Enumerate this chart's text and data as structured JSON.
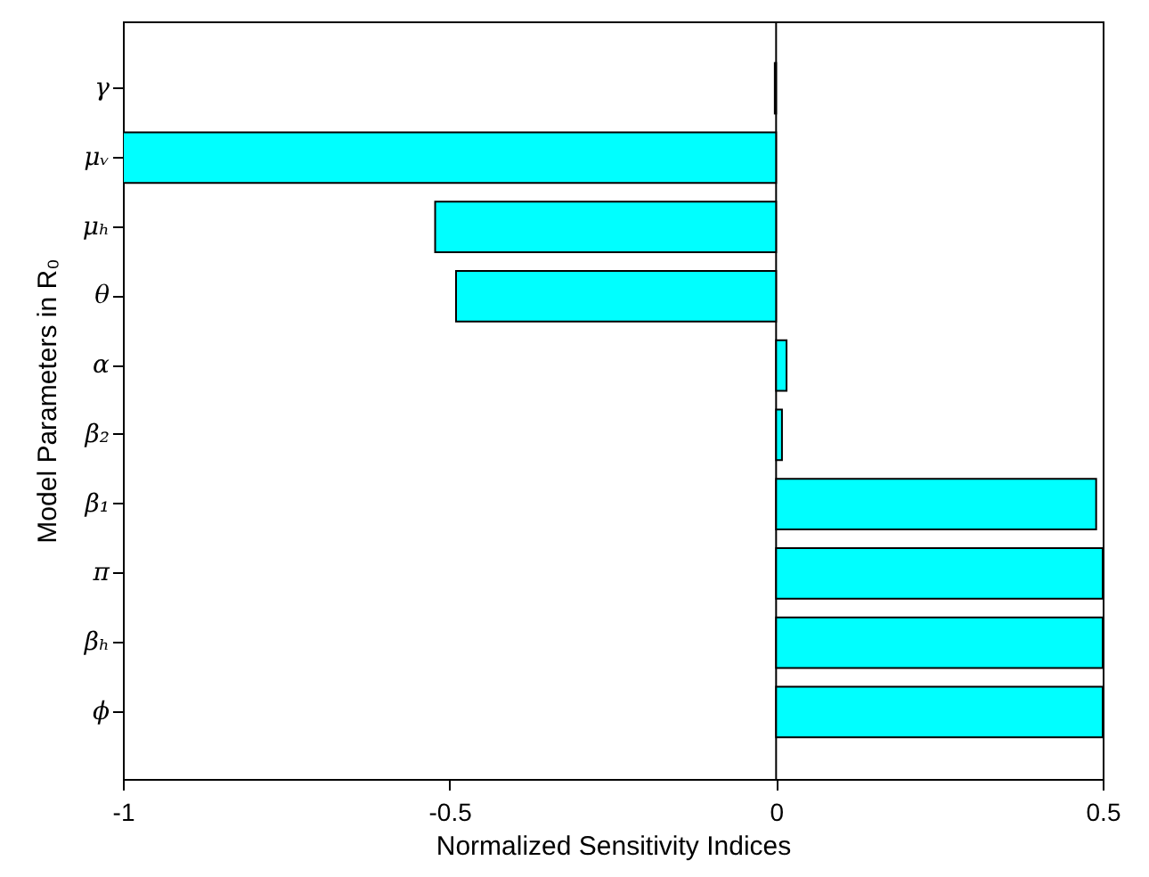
{
  "chart_data": {
    "type": "bar",
    "orientation": "horizontal",
    "xlabel": "Normalized Sensitivity Indices",
    "ylabel": "Model Parameters in R₀",
    "categories": [
      "γ",
      "μᵥ",
      "μₕ",
      "θ",
      "α",
      "β₂",
      "β₁",
      "π",
      "βₕ",
      "ϕ"
    ],
    "values": [
      -0.002,
      -1,
      -0.522,
      -0.49,
      0.016,
      0.009,
      0.49,
      0.5,
      0.5,
      0.5
    ],
    "color": "#00ffff",
    "xlim": [
      -1,
      0.5
    ],
    "xticks": [
      -1,
      -0.5,
      0,
      0.5
    ],
    "grid": false,
    "ref_lines": [
      {
        "axis": "x",
        "value": 0
      }
    ]
  }
}
